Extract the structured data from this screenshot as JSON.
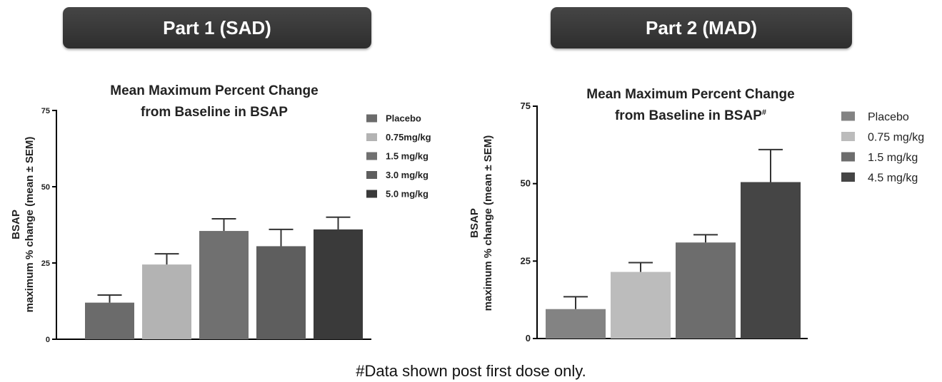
{
  "banners": {
    "part1": "Part 1 (SAD)",
    "part2": "Part 2 (MAD)"
  },
  "footnote": "#Data shown post first dose only.",
  "chart_data": [
    {
      "type": "bar",
      "title_lines": [
        "Mean Maximum Percent Change",
        "from Baseline in BSAP"
      ],
      "ylabel_lines": [
        "BSAP",
        "maximum % change (mean ± SEM)"
      ],
      "ylim": [
        0,
        75
      ],
      "yticks": [
        0,
        25,
        50,
        75
      ],
      "legend_position": "right",
      "series": [
        {
          "name": "Placebo",
          "value": 12,
          "error": 2.5,
          "color": "#6b6b6b"
        },
        {
          "name": "0.75mg/kg",
          "value": 24.5,
          "error": 3.5,
          "color": "#b3b3b3"
        },
        {
          "name": "1.5 mg/kg",
          "value": 35.5,
          "error": 4,
          "color": "#707070"
        },
        {
          "name": "3.0 mg/kg",
          "value": 30.5,
          "error": 5.5,
          "color": "#5e5e5e"
        },
        {
          "name": "5.0 mg/kg",
          "value": 36,
          "error": 4,
          "color": "#3a3a3a"
        }
      ]
    },
    {
      "type": "bar",
      "title_lines": [
        "Mean Maximum Percent Change",
        "from Baseline in BSAP#"
      ],
      "ylabel_lines": [
        "BSAP",
        "maximum % change (mean ± SEM)"
      ],
      "ylim": [
        0,
        75
      ],
      "yticks": [
        0,
        25,
        50,
        75
      ],
      "legend_position": "right",
      "series": [
        {
          "name": "Placebo",
          "value": 9.5,
          "error": 4,
          "color": "#838383"
        },
        {
          "name": "0.75 mg/kg",
          "value": 21.5,
          "error": 3,
          "color": "#bcbcbc"
        },
        {
          "name": "1.5 mg/kg",
          "value": 31,
          "error": 2.5,
          "color": "#6d6d6d"
        },
        {
          "name": "4.5 mg/kg",
          "value": 50.5,
          "error": 10.5,
          "color": "#454545"
        }
      ]
    }
  ]
}
